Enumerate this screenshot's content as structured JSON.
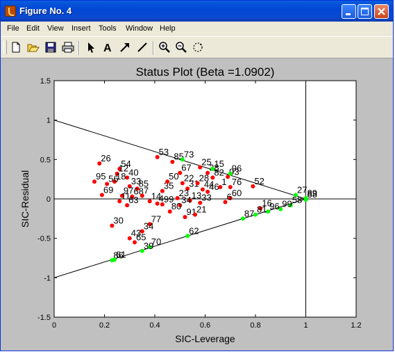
{
  "window": {
    "title": "Figure No. 4",
    "icon": "matlab-figure-icon",
    "controls": [
      "minimize",
      "maximize",
      "close"
    ]
  },
  "menubar": {
    "items": [
      "File",
      "Edit",
      "View",
      "Insert",
      "Tools",
      "Window",
      "Help"
    ]
  },
  "toolbar": {
    "tools": [
      "new-figure-icon",
      "open-file-icon",
      "save-icon",
      "print-icon",
      "edit-plot-arrow-icon",
      "insert-text-icon",
      "insert-arrow-icon",
      "insert-line-icon",
      "zoom-in-icon",
      "zoom-out-icon",
      "rotate-3d-icon"
    ]
  },
  "colors": {
    "outlier": "#ff0000",
    "influential": "#00ff00",
    "axes_background": "#ffffff",
    "figure_background": "#c0c0c0"
  },
  "chart_data": {
    "type": "scatter",
    "title": "Status Plot (Beta =1.0902)",
    "xlabel": "SIC-Leverage",
    "ylabel": "SIC-Residual",
    "xlim": [
      0,
      1.2
    ],
    "ylim": [
      -1.5,
      1.5
    ],
    "xticks": [
      "0",
      "0.2",
      "0.4",
      "0.6",
      "0.8",
      "1",
      "1.2"
    ],
    "yticks": [
      "1.5",
      "1",
      "0.5",
      "0",
      "-0.5",
      "-1",
      "-1.5"
    ],
    "grid": false,
    "reference_lines": [
      {
        "from": [
          0,
          1
        ],
        "to": [
          1,
          0
        ]
      },
      {
        "from": [
          0,
          -1
        ],
        "to": [
          1,
          0
        ]
      },
      {
        "from": [
          0,
          0
        ],
        "to": [
          1.2,
          0
        ]
      },
      {
        "from": [
          1,
          -1.5
        ],
        "to": [
          1,
          1.5
        ]
      }
    ],
    "series": [
      {
        "color": "#ff0000",
        "points": [
          {
            "x": 0.18,
            "y": 0.45,
            "label": "26"
          },
          {
            "x": 0.26,
            "y": 0.38,
            "label": "54"
          },
          {
            "x": 0.25,
            "y": 0.32,
            "label": "12"
          },
          {
            "x": 0.29,
            "y": 0.27,
            "label": "40"
          },
          {
            "x": 0.24,
            "y": 0.22,
            "label": "18"
          },
          {
            "x": 0.21,
            "y": 0.19,
            "label": "56"
          },
          {
            "x": 0.16,
            "y": 0.22,
            "label": "95"
          },
          {
            "x": 0.3,
            "y": 0.16,
            "label": "33"
          },
          {
            "x": 0.33,
            "y": 0.13,
            "label": "85"
          },
          {
            "x": 0.19,
            "y": 0.05,
            "label": "69"
          },
          {
            "x": 0.27,
            "y": 0.04,
            "label": "97"
          },
          {
            "x": 0.31,
            "y": 0.03,
            "label": "68"
          },
          {
            "x": 0.26,
            "y": -0.03,
            "label": "11"
          },
          {
            "x": 0.29,
            "y": -0.08,
            "label": "63"
          },
          {
            "x": 0.35,
            "y": 0.04,
            "label": "7"
          },
          {
            "x": 0.38,
            "y": -0.03,
            "label": "14"
          },
          {
            "x": 0.41,
            "y": -0.06,
            "label": "4"
          },
          {
            "x": 0.43,
            "y": 0.1,
            "label": "35"
          },
          {
            "x": 0.41,
            "y": 0.53,
            "label": "53"
          },
          {
            "x": 0.47,
            "y": 0.47,
            "label": "85"
          },
          {
            "x": 0.5,
            "y": 0.33,
            "label": "67"
          },
          {
            "x": 0.45,
            "y": 0.22,
            "label": "50"
          },
          {
            "x": 0.51,
            "y": 0.2,
            "label": "22"
          },
          {
            "x": 0.53,
            "y": 0.13,
            "label": "31"
          },
          {
            "x": 0.57,
            "y": 0.2,
            "label": "28"
          },
          {
            "x": 0.58,
            "y": 0.4,
            "label": "25"
          },
          {
            "x": 0.61,
            "y": 0.33,
            "label": "38"
          },
          {
            "x": 0.59,
            "y": 0.12,
            "label": "44"
          },
          {
            "x": 0.63,
            "y": 0.27,
            "label": "82"
          },
          {
            "x": 0.61,
            "y": 0.09,
            "label": "46"
          },
          {
            "x": 0.66,
            "y": 0.15,
            "label": "1"
          },
          {
            "x": 0.69,
            "y": 0.28,
            "label": "93"
          },
          {
            "x": 0.7,
            "y": 0.15,
            "label": "76"
          },
          {
            "x": 0.7,
            "y": 0.01,
            "label": "60"
          },
          {
            "x": 0.68,
            "y": -0.04,
            "label": "6"
          },
          {
            "x": 0.49,
            "y": 0.01,
            "label": "23"
          },
          {
            "x": 0.54,
            "y": -0.02,
            "label": "13"
          },
          {
            "x": 0.58,
            "y": -0.05,
            "label": "33"
          },
          {
            "x": 0.5,
            "y": -0.08,
            "label": "34"
          },
          {
            "x": 0.46,
            "y": -0.16,
            "label": "80"
          },
          {
            "x": 0.52,
            "y": -0.23,
            "label": "91"
          },
          {
            "x": 0.56,
            "y": -0.2,
            "label": "21"
          },
          {
            "x": 0.38,
            "y": -0.32,
            "label": "77"
          },
          {
            "x": 0.23,
            "y": -0.34,
            "label": "30"
          },
          {
            "x": 0.35,
            "y": -0.41,
            "label": "34"
          },
          {
            "x": 0.3,
            "y": -0.5,
            "label": "43"
          },
          {
            "x": 0.32,
            "y": -0.55,
            "label": "65"
          },
          {
            "x": 0.79,
            "y": 0.16,
            "label": "52"
          },
          {
            "x": 0.82,
            "y": -0.12,
            "label": "16"
          },
          {
            "x": 0.43,
            "y": -0.07,
            "label": "99"
          }
        ]
      },
      {
        "color": "#00ff00",
        "points": [
          {
            "x": 0.51,
            "y": 0.5,
            "label": "73"
          },
          {
            "x": 0.63,
            "y": 0.38,
            "label": "15"
          },
          {
            "x": 0.7,
            "y": 0.32,
            "label": "96"
          },
          {
            "x": 0.96,
            "y": 0.05,
            "label": "27"
          },
          {
            "x": 1.0,
            "y": 0.01,
            "label": "89"
          },
          {
            "x": 1.0,
            "y": -0.01,
            "label": "88"
          },
          {
            "x": 0.94,
            "y": -0.08,
            "label": "58"
          },
          {
            "x": 0.9,
            "y": -0.13,
            "label": "99"
          },
          {
            "x": 0.85,
            "y": -0.16,
            "label": "96"
          },
          {
            "x": 0.8,
            "y": -0.2,
            "label": "81"
          },
          {
            "x": 0.75,
            "y": -0.25,
            "label": "87"
          },
          {
            "x": 0.53,
            "y": -0.47,
            "label": "62"
          },
          {
            "x": 0.38,
            "y": -0.61,
            "label": "70"
          },
          {
            "x": 0.35,
            "y": -0.66,
            "label": "39"
          },
          {
            "x": 0.23,
            "y": -0.78,
            "label": "86"
          },
          {
            "x": 0.24,
            "y": -0.77,
            "label": "61"
          }
        ]
      }
    ]
  }
}
